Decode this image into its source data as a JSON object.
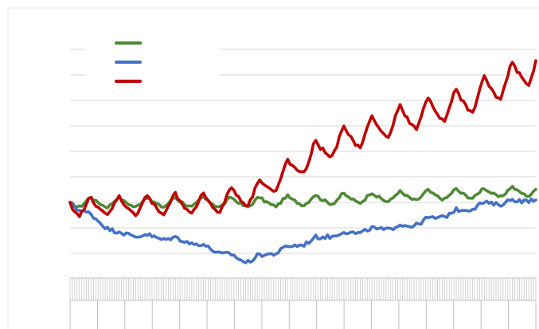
{
  "chart_data": {
    "type": "line",
    "title": "",
    "xlabel": "",
    "ylabel": "",
    "ylim": [
      -3,
      6
    ],
    "grid": true,
    "gridlines_y": [
      -2,
      -1,
      0,
      1,
      2,
      3,
      4,
      5,
      6
    ],
    "legend": {
      "placement": "top-left",
      "entries": [
        {
          "color": "#4e8a35"
        },
        {
          "color": "#4472c4"
        },
        {
          "color": "#c00000"
        }
      ]
    },
    "x_count": 200,
    "series": [
      {
        "color": "#4e8a35",
        "base": [
          [
            0,
            0.0
          ],
          [
            80,
            0.0
          ],
          [
            200,
            0.45
          ]
        ],
        "seasonal_amp": 0.2,
        "noise": 0.05
      },
      {
        "color": "#4472c4",
        "base": [
          [
            0,
            0.0
          ],
          [
            20,
            -1.2
          ],
          [
            50,
            -1.5
          ],
          [
            75,
            -2.3
          ],
          [
            110,
            -1.3
          ],
          [
            145,
            -0.9
          ],
          [
            175,
            -0.1
          ],
          [
            200,
            0.15
          ]
        ],
        "seasonal_amp": 0.08,
        "noise": 0.08
      },
      {
        "color": "#c00000",
        "base": [
          [
            0,
            -0.2
          ],
          [
            60,
            -0.05
          ],
          [
            80,
            0.4
          ],
          [
            110,
            2.2
          ],
          [
            140,
            3.2
          ],
          [
            170,
            4.0
          ],
          [
            200,
            5.4
          ]
        ],
        "seasonal_amp_start": 0.35,
        "seasonal_amp_end": 0.65,
        "noise": 0.06
      }
    ]
  }
}
